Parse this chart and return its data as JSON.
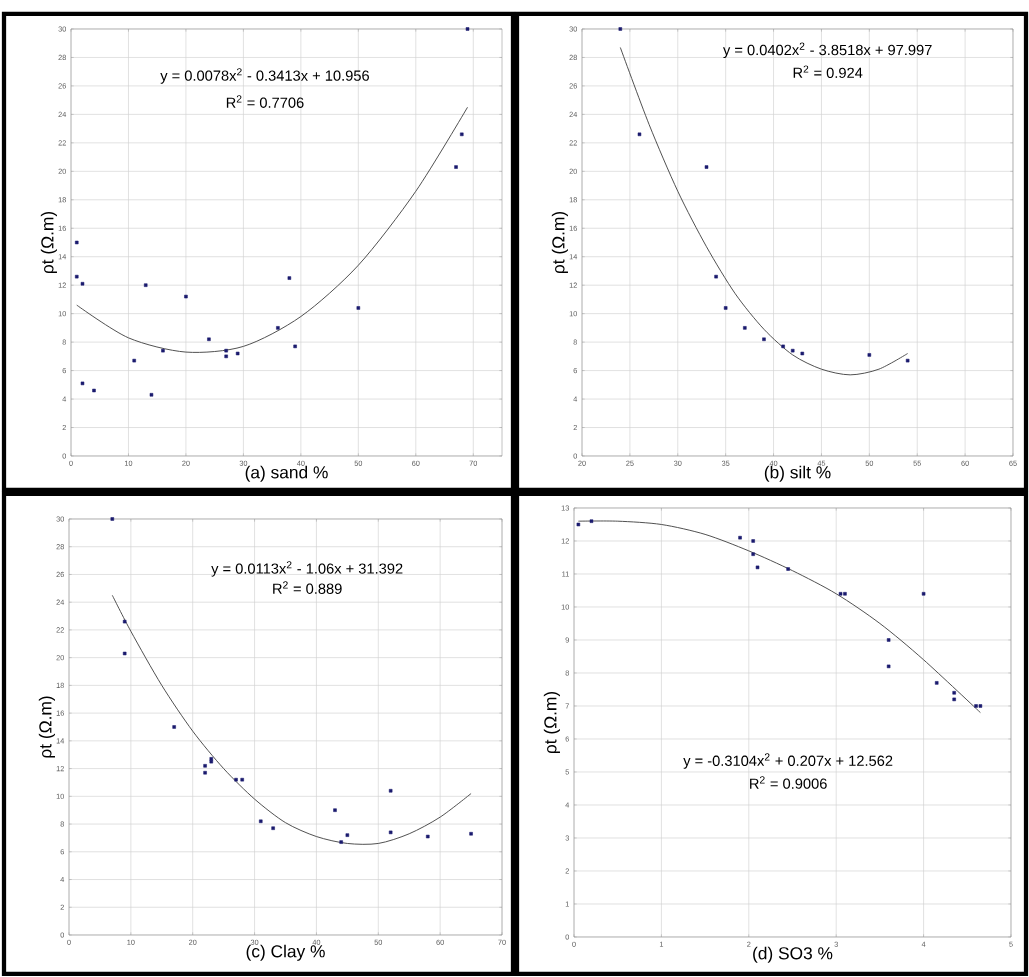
{
  "chart_data": [
    {
      "type": "scatter",
      "xlabel": "(a) sand %",
      "ylabel": "ρt (Ω.m)",
      "xlim": [
        0,
        75
      ],
      "ylim": [
        0,
        30
      ],
      "xticks": [
        0,
        10,
        20,
        30,
        40,
        50,
        60,
        70
      ],
      "yticks": [
        0,
        2,
        4,
        6,
        8,
        10,
        12,
        14,
        16,
        18,
        20,
        22,
        24,
        26,
        28,
        30
      ],
      "grid": true,
      "annotations": [
        "y = 0.0078x$^{2}$ - 0.3413x + 10.956",
        "R$^{2}$ = 0.7706"
      ],
      "series": [
        {
          "marker": "square",
          "color": "#1a1a6e",
          "x": [
            1,
            1,
            2,
            2,
            4,
            11,
            13,
            14,
            16,
            20,
            24,
            27,
            27,
            29,
            36,
            38,
            39,
            50,
            67,
            68,
            69
          ],
          "values": [
            15,
            12.6,
            12.1,
            5.1,
            4.6,
            6.7,
            12,
            4.3,
            7.4,
            11.2,
            8.2,
            7.4,
            7,
            7.2,
            9,
            12.5,
            7.7,
            10.4,
            20.3,
            22.6,
            30
          ]
        },
        {
          "type": "line",
          "color": "#444444",
          "x": [
            1,
            10,
            20,
            30,
            40,
            50,
            60,
            69
          ],
          "values": [
            10.6,
            8.3,
            7.3,
            7.7,
            9.8,
            13.4,
            18.6,
            24.5
          ]
        }
      ]
    },
    {
      "type": "scatter",
      "xlabel": "(b) silt %",
      "ylabel": "ρt (Ω.m)",
      "xlim": [
        20,
        65
      ],
      "ylim": [
        0,
        30
      ],
      "xticks": [
        20,
        25,
        30,
        35,
        40,
        45,
        50,
        55,
        60,
        65
      ],
      "yticks": [
        0,
        2,
        4,
        6,
        8,
        10,
        12,
        14,
        16,
        18,
        20,
        22,
        24,
        26,
        28,
        30
      ],
      "grid": true,
      "annotations": [
        "y = 0.0402x$^{2}$ - 3.8518x + 97.997",
        "R$^{2}$ = 0.924"
      ],
      "series": [
        {
          "marker": "square",
          "color": "#1a1a6e",
          "x": [
            24,
            26,
            33,
            34,
            35,
            37,
            39,
            41,
            42,
            43,
            50,
            54
          ],
          "values": [
            30,
            22.6,
            20.3,
            12.6,
            10.4,
            9,
            8.2,
            7.7,
            7.4,
            7.2,
            7.1,
            6.7
          ]
        },
        {
          "type": "line",
          "color": "#444444",
          "x": [
            24,
            27,
            30,
            33,
            36,
            39,
            42,
            45,
            48,
            51,
            54
          ],
          "values": [
            28.7,
            23.3,
            18.6,
            14.7,
            11.4,
            8.9,
            7.1,
            6.1,
            5.7,
            6.1,
            7.2
          ]
        }
      ]
    },
    {
      "type": "scatter",
      "xlabel": "(c) Clay %",
      "ylabel": "ρt (Ω.m)",
      "xlim": [
        0,
        70
      ],
      "ylim": [
        0,
        30
      ],
      "xticks": [
        0,
        10,
        20,
        30,
        40,
        50,
        60,
        70
      ],
      "yticks": [
        0,
        2,
        4,
        6,
        8,
        10,
        12,
        14,
        16,
        18,
        20,
        22,
        24,
        26,
        28,
        30
      ],
      "grid": true,
      "annotations": [
        "y = 0.0113x$^{2}$ - 1.06x + 31.392",
        "R$^{2}$ = 0.889"
      ],
      "series": [
        {
          "marker": "square",
          "color": "#1a1a6e",
          "x": [
            7,
            9,
            9,
            17,
            22,
            22,
            23,
            23,
            27,
            28,
            31,
            33,
            43,
            44,
            45,
            52,
            52,
            58,
            65
          ],
          "values": [
            30,
            22.6,
            20.3,
            15,
            12.2,
            11.7,
            12.5,
            12.7,
            11.2,
            11.2,
            8.2,
            7.7,
            9,
            6.7,
            7.2,
            10.4,
            7.4,
            7.1,
            7.3
          ]
        },
        {
          "type": "line",
          "color": "#444444",
          "x": [
            7,
            10,
            15,
            20,
            25,
            30,
            35,
            40,
            45,
            50,
            55,
            60,
            65
          ],
          "values": [
            24.5,
            21.9,
            18,
            14.7,
            12,
            9.8,
            8.1,
            7.1,
            6.6,
            6.6,
            7.3,
            8.5,
            10.2
          ]
        }
      ]
    },
    {
      "type": "scatter",
      "xlabel": "(d) SO3 %",
      "ylabel": "ρt (Ω.m)",
      "xlim": [
        0,
        5
      ],
      "ylim": [
        0,
        13
      ],
      "xticks": [
        0,
        1,
        2,
        3,
        4,
        5
      ],
      "yticks": [
        0,
        1,
        2,
        3,
        4,
        5,
        6,
        7,
        8,
        9,
        10,
        11,
        12,
        13
      ],
      "grid": true,
      "annotations": [
        "y = -0.3104x$^{2}$ + 0.207x + 12.562",
        "R$^{2}$ = 0.9006"
      ],
      "series": [
        {
          "marker": "square",
          "color": "#1a1a6e",
          "x": [
            0.05,
            0.2,
            1.9,
            2.05,
            2.05,
            2.1,
            2.45,
            3.05,
            3.1,
            3.6,
            3.6,
            4,
            4.15,
            4.35,
            4.35,
            4.6,
            4.65
          ],
          "values": [
            12.5,
            12.6,
            12.1,
            12,
            11.6,
            11.2,
            11.15,
            10.4,
            10.4,
            9,
            8.2,
            10.4,
            7.7,
            7.4,
            7.2,
            7,
            7
          ]
        },
        {
          "type": "line",
          "color": "#444444",
          "x": [
            0.05,
            0.5,
            1,
            1.5,
            2,
            2.5,
            3,
            3.5,
            4,
            4.65
          ],
          "values": [
            12.6,
            12.6,
            12.5,
            12.2,
            11.7,
            11.1,
            10.4,
            9.5,
            8.4,
            6.8
          ]
        }
      ]
    }
  ]
}
